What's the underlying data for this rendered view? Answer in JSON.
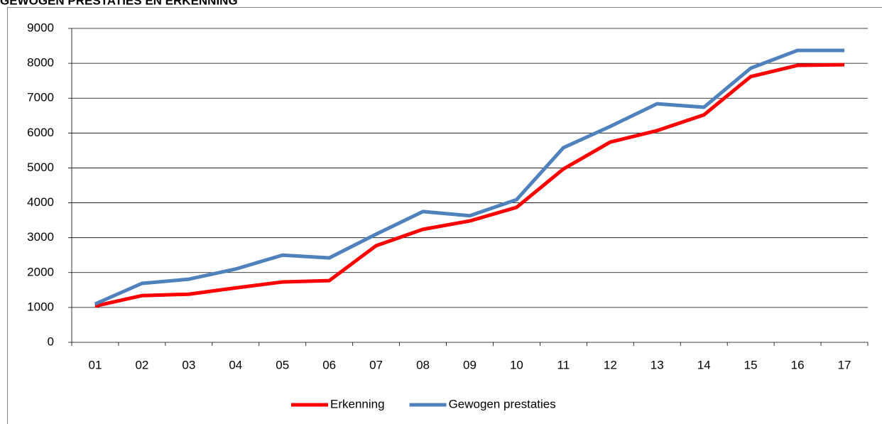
{
  "chart_data": {
    "type": "line",
    "title": "GEWOGEN PRESTATIES EN ERKENNING",
    "categories": [
      "01",
      "02",
      "03",
      "04",
      "05",
      "06",
      "07",
      "08",
      "09",
      "10",
      "11",
      "12",
      "13",
      "14",
      "15",
      "16",
      "17"
    ],
    "series": [
      {
        "name": "Erkenning",
        "color": "#ff0000",
        "values": [
          1040,
          1340,
          1380,
          1560,
          1730,
          1770,
          2770,
          3240,
          3480,
          3870,
          4970,
          5740,
          6070,
          6520,
          7620,
          7940,
          7960
        ]
      },
      {
        "name": "Gewogen prestaties",
        "color": "#4f81bd",
        "values": [
          1100,
          1690,
          1810,
          2100,
          2500,
          2420,
          3100,
          3750,
          3630,
          4090,
          5580,
          6190,
          6840,
          6740,
          7860,
          8370,
          8370
        ]
      }
    ],
    "ylim": [
      0,
      9000
    ],
    "yticks": [
      0,
      1000,
      2000,
      3000,
      4000,
      5000,
      6000,
      7000,
      8000,
      9000
    ],
    "grid": true,
    "legend": "bottom"
  }
}
